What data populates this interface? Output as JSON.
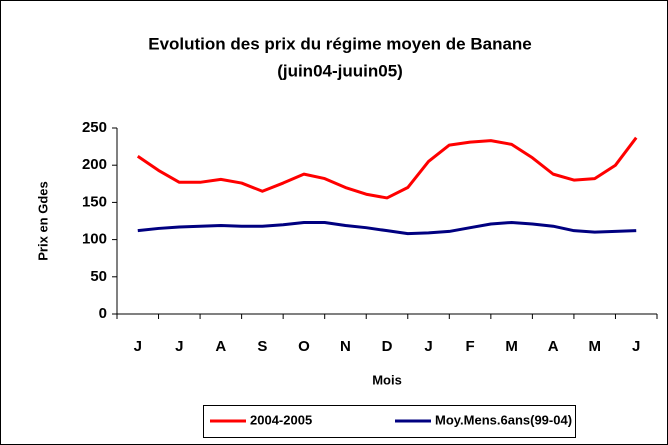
{
  "chart_data": {
    "type": "line",
    "title": "Evolution des prix du régime moyen de Banane",
    "subtitle": "(juin04-juuin05)",
    "y_label": "Prix en Gdes",
    "x_label": "Mois",
    "categories": [
      "J",
      null,
      "J",
      null,
      "A",
      null,
      "S",
      null,
      "O",
      null,
      "N",
      null,
      "D",
      null,
      "J",
      null,
      "F",
      null,
      "M",
      null,
      "A",
      null,
      "M",
      null,
      "J"
    ],
    "series": [
      {
        "name": "2004-2005",
        "color": "#ff0000",
        "values": [
          212,
          193,
          177,
          177,
          181,
          176,
          165,
          176,
          188,
          182,
          170,
          161,
          156,
          170,
          205,
          227,
          231,
          233,
          228,
          210,
          188,
          180,
          182,
          200,
          237
        ]
      },
      {
        "name": "Moy.Mens.6ans(99-04)",
        "color": "#000080",
        "values": [
          112,
          115,
          117,
          118,
          119,
          118,
          118,
          120,
          123,
          123,
          119,
          116,
          112,
          108,
          109,
          111,
          116,
          121,
          123,
          121,
          118,
          112,
          110,
          111,
          112
        ]
      }
    ],
    "ylim": [
      0,
      250
    ],
    "yticks": [
      0,
      50,
      100,
      150,
      200,
      250
    ],
    "legend": "bottom"
  }
}
